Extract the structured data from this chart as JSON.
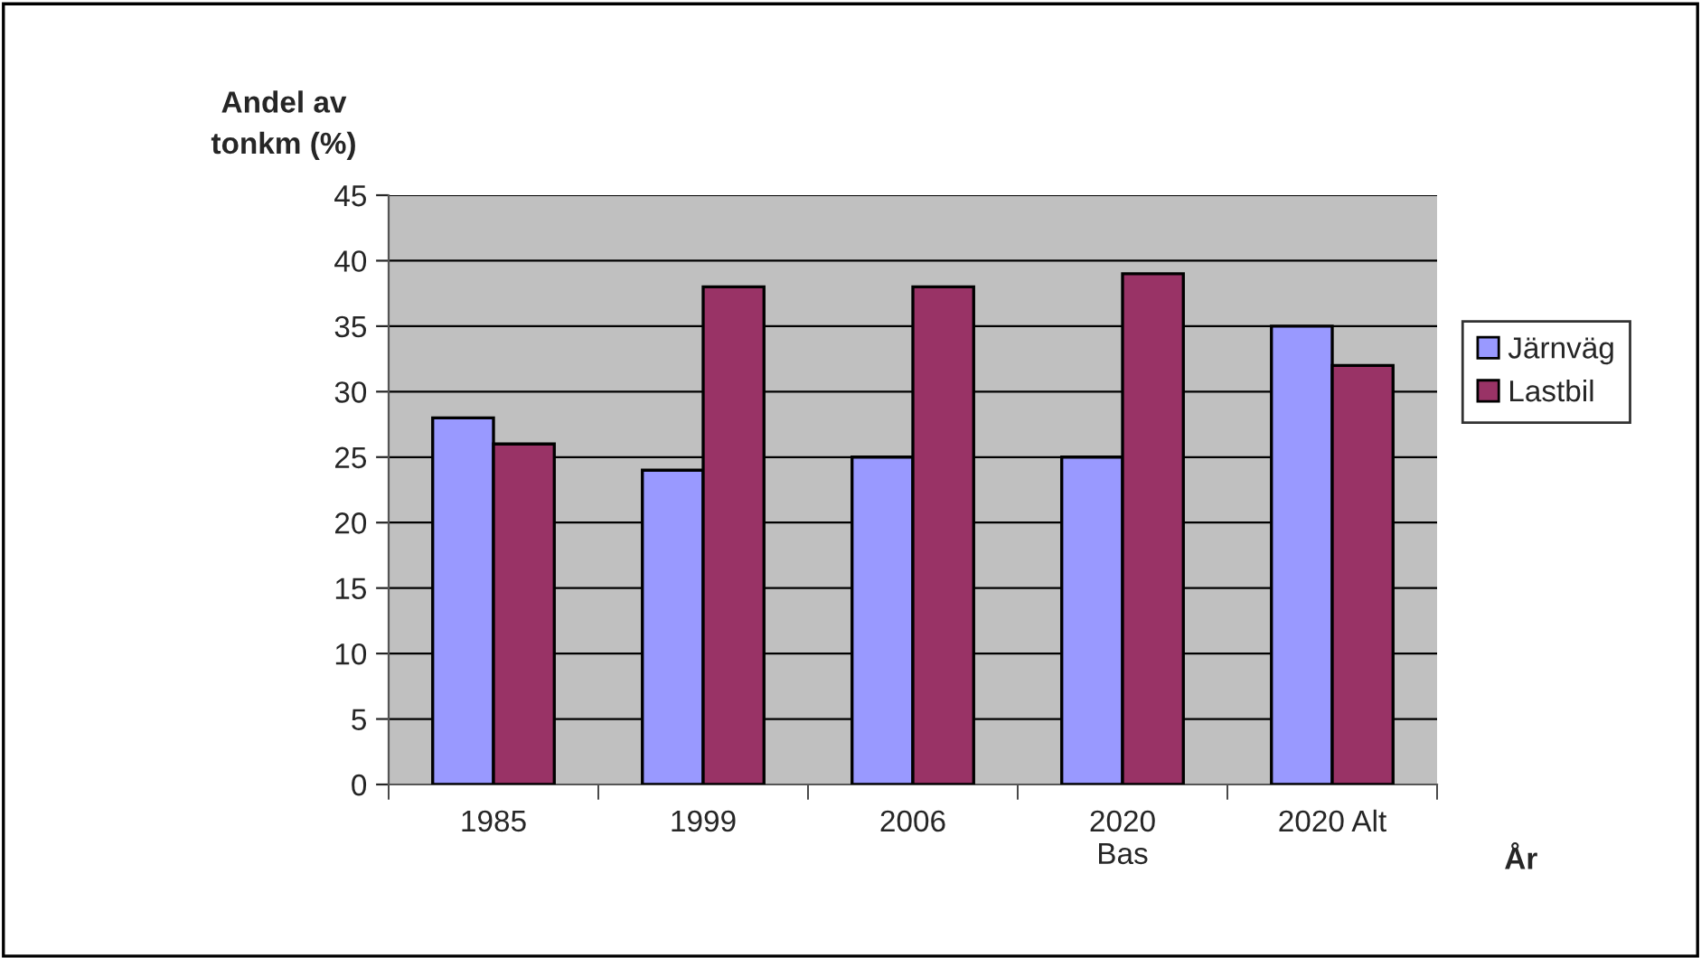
{
  "chart_data": {
    "type": "bar",
    "ylabel": "Andel av\ntonkm (%)",
    "xlabel": "År",
    "categories": [
      "1985",
      "1999",
      "2006",
      "2020\nBas",
      "2020 Alt"
    ],
    "series": [
      {
        "name": "Järnväg",
        "color": "#9999ff",
        "values": [
          28,
          24,
          25,
          25,
          35
        ]
      },
      {
        "name": "Lastbil",
        "color": "#993366",
        "values": [
          26,
          38,
          38,
          39,
          32
        ]
      }
    ],
    "ylim": [
      0,
      45
    ],
    "yticks": [
      0,
      5,
      10,
      15,
      20,
      25,
      30,
      35,
      40,
      45
    ],
    "grid": "y",
    "legend": "right"
  }
}
